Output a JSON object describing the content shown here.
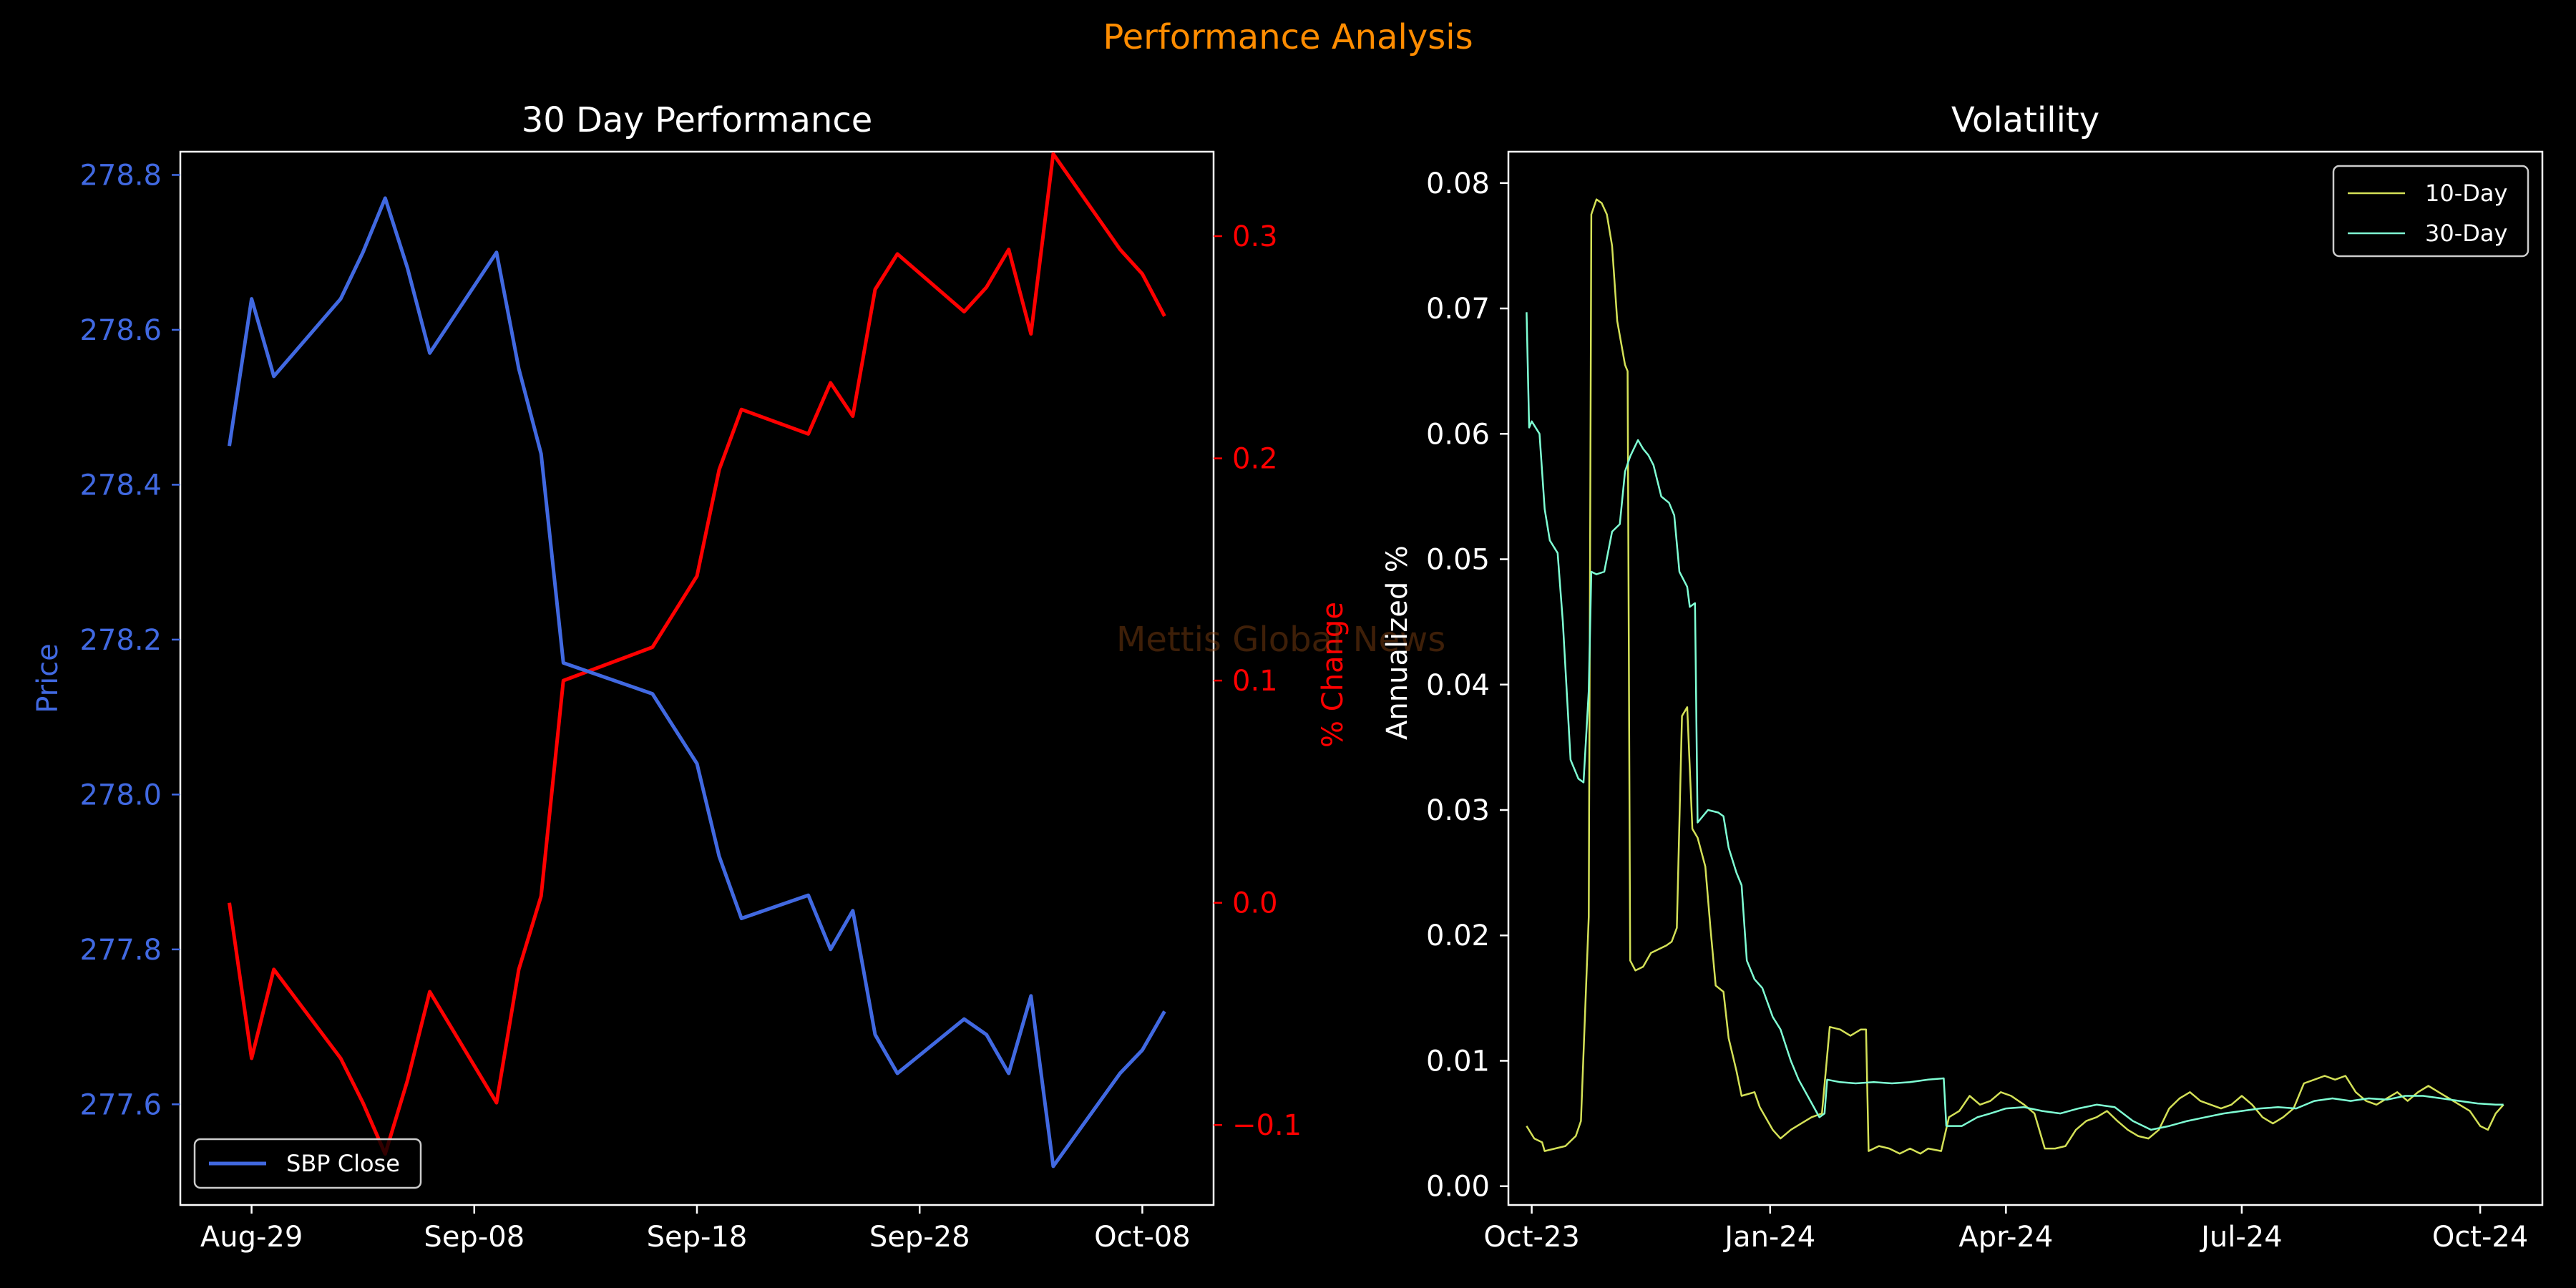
{
  "page": {
    "supertitle": "Performance Analysis",
    "watermark": "Mettis Global News"
  },
  "colors": {
    "background": "#000000",
    "supertitle": "#ff8c00",
    "watermark": "#8b4513",
    "price_line": "#4169e1",
    "pct_line": "#ff0000",
    "vol10": "#d4e157",
    "vol30": "#7fffd4",
    "axes": "#ffffff"
  },
  "chart_data": [
    {
      "type": "line",
      "title": "30 Day Performance",
      "xlabel": "",
      "ylabel": "Price",
      "y2label": "% Change",
      "x_tick_labels": [
        "Aug-29",
        "Sep-08",
        "Sep-18",
        "Sep-28",
        "Oct-08"
      ],
      "y_ticks": [
        277.6,
        277.8,
        278.0,
        278.2,
        278.4,
        278.6,
        278.8
      ],
      "y2_ticks": [
        -0.1,
        0.0,
        0.1,
        0.2,
        0.3
      ],
      "y2_tick_labels": [
        "−0.1",
        "0.0",
        "0.1",
        "0.2",
        "0.3"
      ],
      "ylim": [
        277.47,
        278.83
      ],
      "y2lim": [
        -0.136,
        0.338
      ],
      "x_dates": [
        "2024-08-28",
        "2024-08-29",
        "2024-08-30",
        "2024-09-02",
        "2024-09-03",
        "2024-09-04",
        "2024-09-05",
        "2024-09-06",
        "2024-09-09",
        "2024-09-10",
        "2024-09-11",
        "2024-09-12",
        "2024-09-16",
        "2024-09-18",
        "2024-09-19",
        "2024-09-20",
        "2024-09-23",
        "2024-09-24",
        "2024-09-25",
        "2024-09-26",
        "2024-09-27",
        "2024-09-30",
        "2024-10-01",
        "2024-10-02",
        "2024-10-03",
        "2024-10-04",
        "2024-10-07",
        "2024-10-08",
        "2024-10-09"
      ],
      "series": [
        {
          "name": "SBP Close",
          "axis": "left",
          "values": [
            278.45,
            278.64,
            278.54,
            278.64,
            278.7,
            278.77,
            278.68,
            278.57,
            278.7,
            278.55,
            278.44,
            278.17,
            278.13,
            278.04,
            277.92,
            277.84,
            277.87,
            277.8,
            277.85,
            277.69,
            277.64,
            277.71,
            277.69,
            277.64,
            277.74,
            277.52,
            277.64,
            277.67,
            277.72
          ]
        },
        {
          "axis": "right",
          "values": [
            0.0,
            -0.07,
            -0.03,
            -0.07,
            -0.09,
            -0.113,
            -0.08,
            -0.04,
            -0.09,
            -0.03,
            0.003,
            0.1,
            0.115,
            0.147,
            0.195,
            0.222,
            0.211,
            0.234,
            0.219,
            0.276,
            0.292,
            0.266,
            0.277,
            0.294,
            0.256,
            0.337,
            0.294,
            0.283,
            0.264
          ]
        }
      ],
      "legend": {
        "placement": "lower-left",
        "entries": [
          "SBP Close"
        ]
      }
    },
    {
      "type": "line",
      "title": "Volatility",
      "xlabel": "",
      "ylabel": "Annualized %",
      "x_tick_labels": [
        "Oct-23",
        "Jan-24",
        "Apr-24",
        "Jul-24",
        "Oct-24"
      ],
      "y_ticks": [
        0.0,
        0.01,
        0.02,
        0.03,
        0.04,
        0.05,
        0.06,
        0.07,
        0.08
      ],
      "y_tick_labels": [
        "0.00",
        "0.01",
        "0.02",
        "0.03",
        "0.04",
        "0.05",
        "0.06",
        "0.07",
        "0.08"
      ],
      "ylim": [
        -0.0015,
        0.0825
      ],
      "xlim": [
        "2023-09-22",
        "2024-10-25"
      ],
      "series": [
        {
          "name": "10-Day",
          "points": [
            [
              "2023-09-29",
              0.0048
            ],
            [
              "2023-10-02",
              0.0038
            ],
            [
              "2023-10-05",
              0.0035
            ],
            [
              "2023-10-06",
              0.0028
            ],
            [
              "2023-10-10",
              0.003
            ],
            [
              "2023-10-14",
              0.0032
            ],
            [
              "2023-10-18",
              0.004
            ],
            [
              "2023-10-20",
              0.0052
            ],
            [
              "2023-10-23",
              0.0215
            ],
            [
              "2023-10-24",
              0.0775
            ],
            [
              "2023-10-26",
              0.0787
            ],
            [
              "2023-10-28",
              0.0784
            ],
            [
              "2023-10-30",
              0.0775
            ],
            [
              "2023-11-01",
              0.075
            ],
            [
              "2023-11-03",
              0.069
            ],
            [
              "2023-11-06",
              0.0655
            ],
            [
              "2023-11-07",
              0.065
            ],
            [
              "2023-11-08",
              0.018
            ],
            [
              "2023-11-10",
              0.0172
            ],
            [
              "2023-11-13",
              0.0175
            ],
            [
              "2023-11-16",
              0.0186
            ],
            [
              "2023-11-20",
              0.019
            ],
            [
              "2023-11-22",
              0.0192
            ],
            [
              "2023-11-24",
              0.0195
            ],
            [
              "2023-11-26",
              0.0206
            ],
            [
              "2023-11-28",
              0.0375
            ],
            [
              "2023-11-30",
              0.0382
            ],
            [
              "2023-12-02",
              0.0285
            ],
            [
              "2023-12-04",
              0.0278
            ],
            [
              "2023-12-07",
              0.0255
            ],
            [
              "2023-12-09",
              0.0205
            ],
            [
              "2023-12-11",
              0.016
            ],
            [
              "2023-12-14",
              0.0155
            ],
            [
              "2023-12-16",
              0.0118
            ],
            [
              "2023-12-19",
              0.0092
            ],
            [
              "2023-12-21",
              0.0072
            ],
            [
              "2023-12-26",
              0.0075
            ],
            [
              "2023-12-28",
              0.0063
            ],
            [
              "2024-01-02",
              0.0045
            ],
            [
              "2024-01-05",
              0.0038
            ],
            [
              "2024-01-09",
              0.0045
            ],
            [
              "2024-01-13",
              0.005
            ],
            [
              "2024-01-17",
              0.0055
            ],
            [
              "2024-01-21",
              0.0058
            ],
            [
              "2024-01-24",
              0.0127
            ],
            [
              "2024-01-28",
              0.0125
            ],
            [
              "2024-02-01",
              0.012
            ],
            [
              "2024-02-05",
              0.0125
            ],
            [
              "2024-02-07",
              0.0125
            ],
            [
              "2024-02-08",
              0.0028
            ],
            [
              "2024-02-12",
              0.0032
            ],
            [
              "2024-02-16",
              0.003
            ],
            [
              "2024-02-20",
              0.0026
            ],
            [
              "2024-02-24",
              0.003
            ],
            [
              "2024-02-28",
              0.0026
            ],
            [
              "2024-03-02",
              0.003
            ],
            [
              "2024-03-07",
              0.0028
            ],
            [
              "2024-03-10",
              0.0055
            ],
            [
              "2024-03-14",
              0.006
            ],
            [
              "2024-03-18",
              0.0072
            ],
            [
              "2024-03-22",
              0.0065
            ],
            [
              "2024-03-26",
              0.0068
            ],
            [
              "2024-03-30",
              0.0075
            ],
            [
              "2024-04-03",
              0.0072
            ],
            [
              "2024-04-08",
              0.0065
            ],
            [
              "2024-04-12",
              0.0058
            ],
            [
              "2024-04-16",
              0.003
            ],
            [
              "2024-04-20",
              0.003
            ],
            [
              "2024-04-24",
              0.0032
            ],
            [
              "2024-04-28",
              0.0045
            ],
            [
              "2024-05-02",
              0.0052
            ],
            [
              "2024-05-06",
              0.0055
            ],
            [
              "2024-05-10",
              0.006
            ],
            [
              "2024-05-14",
              0.0052
            ],
            [
              "2024-05-18",
              0.0045
            ],
            [
              "2024-05-22",
              0.004
            ],
            [
              "2024-05-26",
              0.0038
            ],
            [
              "2024-05-30",
              0.0045
            ],
            [
              "2024-06-03",
              0.0062
            ],
            [
              "2024-06-07",
              0.007
            ],
            [
              "2024-06-11",
              0.0075
            ],
            [
              "2024-06-15",
              0.0068
            ],
            [
              "2024-06-19",
              0.0065
            ],
            [
              "2024-06-23",
              0.0062
            ],
            [
              "2024-06-27",
              0.0065
            ],
            [
              "2024-07-01",
              0.0072
            ],
            [
              "2024-07-05",
              0.0065
            ],
            [
              "2024-07-09",
              0.0055
            ],
            [
              "2024-07-13",
              0.005
            ],
            [
              "2024-07-17",
              0.0055
            ],
            [
              "2024-07-21",
              0.0062
            ],
            [
              "2024-07-25",
              0.0082
            ],
            [
              "2024-07-29",
              0.0085
            ],
            [
              "2024-08-02",
              0.0088
            ],
            [
              "2024-08-06",
              0.0085
            ],
            [
              "2024-08-10",
              0.0088
            ],
            [
              "2024-08-14",
              0.0075
            ],
            [
              "2024-08-18",
              0.0068
            ],
            [
              "2024-08-22",
              0.0065
            ],
            [
              "2024-08-26",
              0.007
            ],
            [
              "2024-08-30",
              0.0075
            ],
            [
              "2024-09-03",
              0.0068
            ],
            [
              "2024-09-07",
              0.0075
            ],
            [
              "2024-09-11",
              0.008
            ],
            [
              "2024-09-15",
              0.0075
            ],
            [
              "2024-09-19",
              0.007
            ],
            [
              "2024-09-23",
              0.0065
            ],
            [
              "2024-09-27",
              0.006
            ],
            [
              "2024-10-01",
              0.0048
            ],
            [
              "2024-10-04",
              0.0045
            ],
            [
              "2024-10-07",
              0.0058
            ],
            [
              "2024-10-10",
              0.0065
            ]
          ]
        },
        {
          "name": "30-Day",
          "points": [
            [
              "2023-09-29",
              0.0697
            ],
            [
              "2023-09-30",
              0.0605
            ],
            [
              "2023-10-01",
              0.061
            ],
            [
              "2023-10-04",
              0.06
            ],
            [
              "2023-10-06",
              0.054
            ],
            [
              "2023-10-08",
              0.0515
            ],
            [
              "2023-10-11",
              0.0505
            ],
            [
              "2023-10-13",
              0.045
            ],
            [
              "2023-10-16",
              0.034
            ],
            [
              "2023-10-19",
              0.0325
            ],
            [
              "2023-10-21",
              0.0322
            ],
            [
              "2023-10-23",
              0.0395
            ],
            [
              "2023-10-24",
              0.049
            ],
            [
              "2023-10-26",
              0.0488
            ],
            [
              "2023-10-29",
              0.049
            ],
            [
              "2023-11-01",
              0.0522
            ],
            [
              "2023-11-04",
              0.0528
            ],
            [
              "2023-11-06",
              0.057
            ],
            [
              "2023-11-08",
              0.0582
            ],
            [
              "2023-11-11",
              0.0595
            ],
            [
              "2023-11-13",
              0.0588
            ],
            [
              "2023-11-15",
              0.0583
            ],
            [
              "2023-11-17",
              0.0575
            ],
            [
              "2023-11-20",
              0.055
            ],
            [
              "2023-11-23",
              0.0545
            ],
            [
              "2023-11-25",
              0.0535
            ],
            [
              "2023-11-27",
              0.049
            ],
            [
              "2023-11-30",
              0.0478
            ],
            [
              "2023-12-01",
              0.0462
            ],
            [
              "2023-12-03",
              0.0465
            ],
            [
              "2023-12-04",
              0.029
            ],
            [
              "2023-12-06",
              0.0295
            ],
            [
              "2023-12-08",
              0.03
            ],
            [
              "2023-12-12",
              0.0298
            ],
            [
              "2023-12-14",
              0.0295
            ],
            [
              "2023-12-16",
              0.027
            ],
            [
              "2023-12-19",
              0.025
            ],
            [
              "2023-12-21",
              0.024
            ],
            [
              "2023-12-23",
              0.018
            ],
            [
              "2023-12-26",
              0.0165
            ],
            [
              "2023-12-29",
              0.0158
            ],
            [
              "2024-01-02",
              0.0135
            ],
            [
              "2024-01-05",
              0.0125
            ],
            [
              "2024-01-09",
              0.01
            ],
            [
              "2024-01-12",
              0.0085
            ],
            [
              "2024-01-16",
              0.007
            ],
            [
              "2024-01-20",
              0.0055
            ],
            [
              "2024-01-22",
              0.0058
            ],
            [
              "2024-01-23",
              0.0085
            ],
            [
              "2024-01-28",
              0.0083
            ],
            [
              "2024-02-03",
              0.0082
            ],
            [
              "2024-02-10",
              0.0083
            ],
            [
              "2024-02-17",
              0.0082
            ],
            [
              "2024-02-24",
              0.0083
            ],
            [
              "2024-03-02",
              0.0085
            ],
            [
              "2024-03-08",
              0.0086
            ],
            [
              "2024-03-09",
              0.0048
            ],
            [
              "2024-03-15",
              0.0048
            ],
            [
              "2024-03-21",
              0.0055
            ],
            [
              "2024-03-26",
              0.0058
            ],
            [
              "2024-04-01",
              0.0062
            ],
            [
              "2024-04-08",
              0.0063
            ],
            [
              "2024-04-15",
              0.006
            ],
            [
              "2024-04-22",
              0.0058
            ],
            [
              "2024-04-29",
              0.0062
            ],
            [
              "2024-05-06",
              0.0065
            ],
            [
              "2024-05-13",
              0.0063
            ],
            [
              "2024-05-20",
              0.0052
            ],
            [
              "2024-05-27",
              0.0045
            ],
            [
              "2024-06-03",
              0.0048
            ],
            [
              "2024-06-10",
              0.0052
            ],
            [
              "2024-06-17",
              0.0055
            ],
            [
              "2024-06-24",
              0.0058
            ],
            [
              "2024-07-01",
              0.006
            ],
            [
              "2024-07-08",
              0.0062
            ],
            [
              "2024-07-15",
              0.0063
            ],
            [
              "2024-07-22",
              0.0062
            ],
            [
              "2024-07-29",
              0.0068
            ],
            [
              "2024-08-05",
              0.007
            ],
            [
              "2024-08-12",
              0.0068
            ],
            [
              "2024-08-19",
              0.007
            ],
            [
              "2024-08-26",
              0.0069
            ],
            [
              "2024-09-02",
              0.0072
            ],
            [
              "2024-09-09",
              0.0072
            ],
            [
              "2024-09-16",
              0.007
            ],
            [
              "2024-09-23",
              0.0068
            ],
            [
              "2024-09-30",
              0.0066
            ],
            [
              "2024-10-07",
              0.0065
            ],
            [
              "2024-10-10",
              0.0065
            ]
          ]
        }
      ],
      "legend": {
        "placement": "top-right",
        "entries": [
          "10-Day",
          "30-Day"
        ]
      }
    }
  ]
}
